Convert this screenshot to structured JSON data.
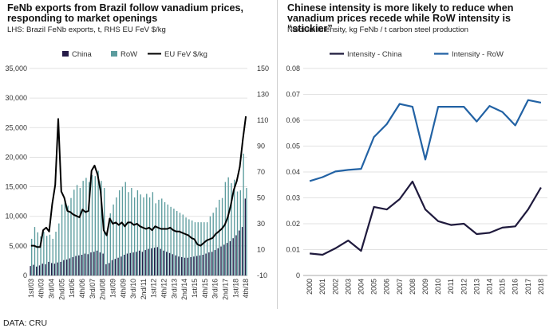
{
  "source": "DATA: CRU",
  "chart_data": [
    {
      "type": "bar",
      "title": "FeNb exports from Brazil follow vanadium prices, responding to market openings",
      "subtitle": "LHS: Brazil FeNb exports, t, RHS EU FeV $/kg",
      "legend": [
        "China",
        "RoW",
        "EU FeV $/kg"
      ],
      "legend_position": "top",
      "colors": {
        "China": "#261c48",
        "RoW": "#5c9c9e",
        "EU FeV $/kg": "#000000"
      },
      "ylim": [
        0,
        35000
      ],
      "yticks": [
        "0",
        "5,000",
        "10,000",
        "15,000",
        "20,000",
        "25,000",
        "30,000",
        "35,000"
      ],
      "y2lim": [
        -10,
        150
      ],
      "y2ticks": [
        "-10",
        "10",
        "30",
        "50",
        "70",
        "90",
        "110",
        "130",
        "150"
      ],
      "grid": true,
      "xtick_labels": [
        "1st/03",
        "4th/03",
        "3rd/04",
        "2nd/05",
        "1st/06",
        "4th/06",
        "3rd/07",
        "2nd/08",
        "1st/09",
        "4th/09",
        "3rd/10",
        "2nd/11",
        "1st/12",
        "4th/12",
        "3rd/13",
        "2nd/14",
        "1st/15",
        "4th/15",
        "3rd/16",
        "2nd/17",
        "1st/18",
        "4th/18"
      ],
      "series": [
        {
          "name": "China",
          "values": [
            1600,
            1800,
            1500,
            1700,
            2000,
            1900,
            2300,
            2100,
            2000,
            2200,
            2300,
            2600,
            2700,
            2900,
            3100,
            3300,
            3400,
            3500,
            3700,
            3600,
            3900,
            4000,
            4200,
            3900,
            3700,
            1900,
            2100,
            2600,
            2800,
            3000,
            3200,
            3500,
            3700,
            3800,
            3900,
            4000,
            4200,
            4000,
            4300,
            4500,
            4600,
            4700,
            4800,
            4500,
            4200,
            4000,
            3800,
            3600,
            3400,
            3200,
            3100,
            3000,
            3000,
            3100,
            3200,
            3300,
            3400,
            3500,
            3700,
            3900,
            4000,
            4300,
            4600,
            4900,
            5200,
            5500,
            5800,
            6300,
            6800,
            7600,
            8200,
            13000
          ]
        },
        {
          "name": "RoW",
          "values": [
            6200,
            8200,
            7300,
            6600,
            7400,
            6700,
            6900,
            6200,
            7400,
            8800,
            12000,
            12500,
            11800,
            13100,
            14500,
            15300,
            14800,
            16000,
            16500,
            15800,
            17000,
            16800,
            17700,
            16000,
            14800,
            7600,
            10500,
            12000,
            13200,
            14400,
            15000,
            15800,
            14100,
            14800,
            13200,
            14400,
            13700,
            13200,
            13800,
            13200,
            14100,
            12200,
            12800,
            13000,
            12400,
            12000,
            11600,
            11300,
            10900,
            10600,
            10300,
            9800,
            9500,
            9300,
            9000,
            9000,
            9000,
            9000,
            9000,
            10000,
            10600,
            11500,
            12800,
            13100,
            15800,
            16600,
            15600,
            16200,
            14200,
            14400,
            20600,
            14800
          ]
        },
        {
          "name": "EU FeV $/kg",
          "axis": "right",
          "values": [
            13,
            13,
            12,
            12,
            25,
            27,
            24,
            45,
            60,
            111,
            55,
            50,
            40,
            39,
            37,
            36,
            35,
            41,
            39,
            40,
            71,
            75,
            68,
            55,
            25,
            21,
            34,
            30,
            31,
            29,
            31,
            28,
            31,
            31,
            29,
            30,
            28,
            27,
            26,
            27,
            25,
            28,
            27,
            26,
            26,
            26,
            27,
            25,
            24,
            24,
            23,
            22,
            21,
            19,
            18,
            14,
            13,
            15,
            17,
            18,
            19,
            22,
            24,
            26,
            29,
            35,
            44,
            56,
            63,
            74,
            95,
            113
          ]
        }
      ]
    },
    {
      "type": "line",
      "title": "Chinese intensity is more likely to reduce when vanadium prices recede while RoW intensity is “stickier”",
      "subtitle": "Niobium intensity, kg FeNb / t carbon steel production",
      "legend": [
        "Intensity - China",
        "Intensity - RoW"
      ],
      "legend_position": "top",
      "x": [
        "2000",
        "2001",
        "2002",
        "2003",
        "2004",
        "2005",
        "2006",
        "2007",
        "2008",
        "2009",
        "2010",
        "2011",
        "2012",
        "2013",
        "2014",
        "2015",
        "2016",
        "2017",
        "2018"
      ],
      "ylim": [
        0,
        0.08
      ],
      "yticks": [
        "0",
        "0.01",
        "0.02",
        "0.03",
        "0.04",
        "0.05",
        "0.06",
        "0.07",
        "0.08"
      ],
      "grid": true,
      "series": [
        {
          "name": "Intensity - China",
          "color": "#1f1a3d",
          "values": [
            0.0085,
            0.008,
            0.0105,
            0.0135,
            0.0095,
            0.0265,
            0.0255,
            0.0295,
            0.0363,
            0.0255,
            0.021,
            0.0195,
            0.02,
            0.016,
            0.0165,
            0.0185,
            0.019,
            0.0255,
            0.034
          ]
        },
        {
          "name": "Intensity - RoW",
          "color": "#2262a4",
          "values": [
            0.0365,
            0.038,
            0.0402,
            0.0408,
            0.0412,
            0.0535,
            0.0585,
            0.0663,
            0.0652,
            0.0448,
            0.0652,
            0.0652,
            0.0652,
            0.0595,
            0.0655,
            0.0632,
            0.058,
            0.0678,
            0.0668
          ]
        }
      ]
    }
  ]
}
